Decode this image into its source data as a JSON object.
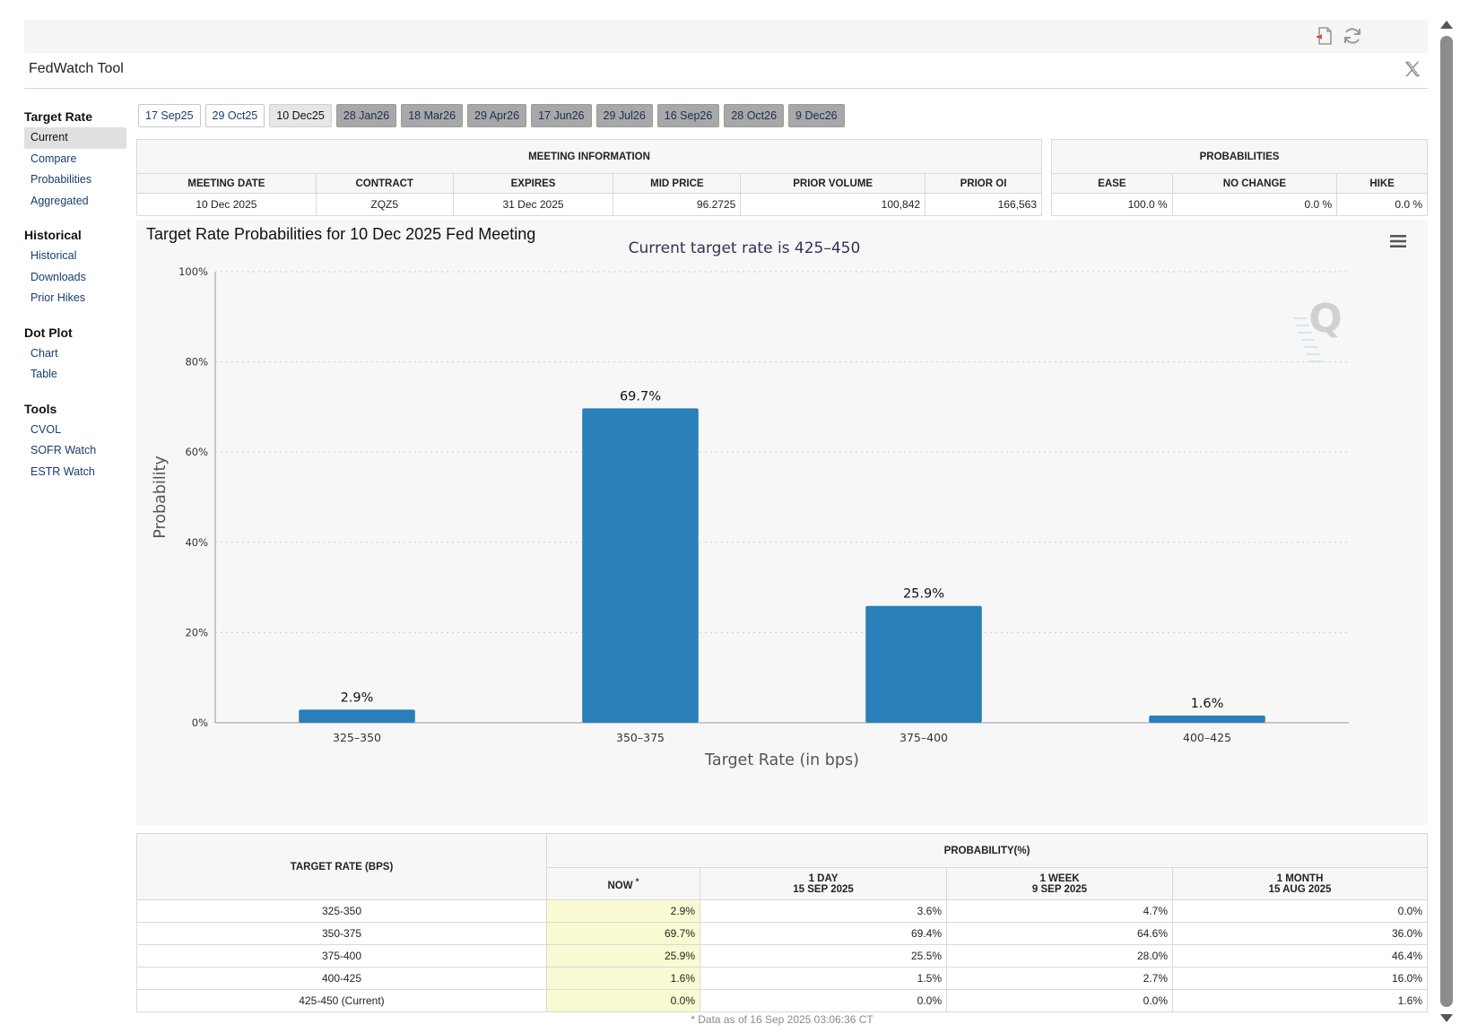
{
  "app": {
    "title": "FedWatch Tool"
  },
  "icons": {
    "pdf": "pdf-export-icon",
    "refresh": "refresh-icon",
    "x": "x-social-icon",
    "menu": "chart-menu-icon",
    "logo": "quikstrike-logo-icon"
  },
  "sidebar": {
    "sections": [
      {
        "heading": "Target Rate",
        "items": [
          "Current",
          "Compare",
          "Probabilities",
          "Aggregated"
        ]
      },
      {
        "heading": "Historical",
        "items": [
          "Historical",
          "Downloads",
          "Prior Hikes"
        ]
      },
      {
        "heading": "Dot Plot",
        "items": [
          "Chart",
          "Table"
        ]
      },
      {
        "heading": "Tools",
        "items": [
          "CVOL",
          "SOFR Watch",
          "ESTR Watch"
        ]
      }
    ],
    "active": "Current"
  },
  "tabs": [
    {
      "label": "17 Sep25",
      "state": "normal"
    },
    {
      "label": "29 Oct25",
      "state": "normal"
    },
    {
      "label": "10 Dec25",
      "state": "selected"
    },
    {
      "label": "28 Jan26",
      "state": "future"
    },
    {
      "label": "18 Mar26",
      "state": "future"
    },
    {
      "label": "29 Apr26",
      "state": "future"
    },
    {
      "label": "17 Jun26",
      "state": "future"
    },
    {
      "label": "29 Jul26",
      "state": "future"
    },
    {
      "label": "16 Sep26",
      "state": "future"
    },
    {
      "label": "28 Oct26",
      "state": "future"
    },
    {
      "label": "9 Dec26",
      "state": "future"
    }
  ],
  "meeting_info": {
    "caption": "MEETING INFORMATION",
    "headers": [
      "MEETING DATE",
      "CONTRACT",
      "EXPIRES",
      "MID PRICE",
      "PRIOR VOLUME",
      "PRIOR OI"
    ],
    "values": [
      "10 Dec 2025",
      "ZQZ5",
      "31 Dec 2025",
      "96.2725",
      "100,842",
      "166,563"
    ]
  },
  "probabilities": {
    "caption": "PROBABILITIES",
    "headers": [
      "EASE",
      "NO CHANGE",
      "HIKE"
    ],
    "values": [
      "100.0 %",
      "0.0 %",
      "0.0 %"
    ]
  },
  "chart": {
    "title": "Target Rate Probabilities for 10 Dec 2025 Fed Meeting"
  },
  "chart_data": {
    "type": "bar",
    "subtitle": "Current target rate is 425–450",
    "categories": [
      "325–350",
      "350–375",
      "375–400",
      "400–425"
    ],
    "values": [
      2.9,
      69.7,
      25.9,
      1.6
    ],
    "data_labels": [
      "2.9%",
      "69.7%",
      "25.9%",
      "1.6%"
    ],
    "xlabel": "Target Rate (in bps)",
    "ylabel": "Probability",
    "ylim": [
      0,
      100
    ],
    "yticks": [
      "0%",
      "20%",
      "40%",
      "60%",
      "80%",
      "100%"
    ],
    "grid": true,
    "bar_color": "#2980b9"
  },
  "prob_table": {
    "col_header": "TARGET RATE (BPS)",
    "group_header": "PROBABILITY(%)",
    "sub_headers": [
      {
        "line1": "NOW",
        "line2": "",
        "sup": "*"
      },
      {
        "line1": "1 DAY",
        "line2": "15 SEP 2025",
        "sup": ""
      },
      {
        "line1": "1 WEEK",
        "line2": "9 SEP 2025",
        "sup": ""
      },
      {
        "line1": "1 MONTH",
        "line2": "15 AUG 2025",
        "sup": ""
      }
    ],
    "rows": [
      {
        "rate": "325-350",
        "now": "2.9%",
        "day": "3.6%",
        "week": "4.7%",
        "month": "0.0%"
      },
      {
        "rate": "350-375",
        "now": "69.7%",
        "day": "69.4%",
        "week": "64.6%",
        "month": "36.0%"
      },
      {
        "rate": "375-400",
        "now": "25.9%",
        "day": "25.5%",
        "week": "28.0%",
        "month": "46.4%"
      },
      {
        "rate": "400-425",
        "now": "1.6%",
        "day": "1.5%",
        "week": "2.7%",
        "month": "16.0%"
      },
      {
        "rate": "425-450 (Current)",
        "now": "0.0%",
        "day": "0.0%",
        "week": "0.0%",
        "month": "1.6%"
      }
    ],
    "footnote": "* Data as of 16 Sep 2025 03:06:36 CT"
  }
}
